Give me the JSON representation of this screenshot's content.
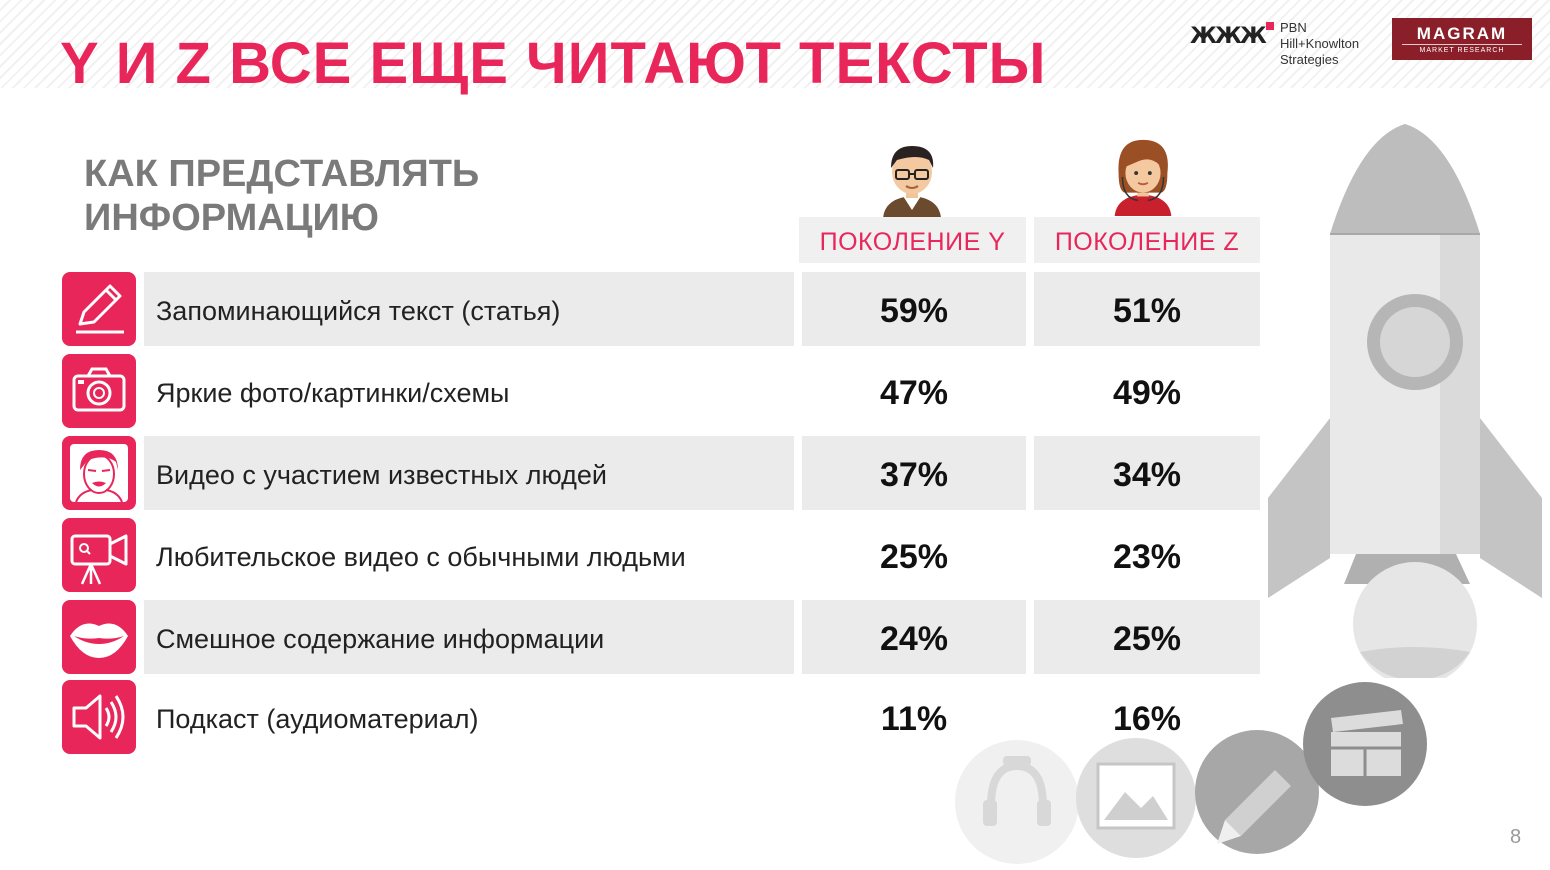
{
  "header": {
    "title": "Y И Z ВСЕ ЕЩЕ ЧИТАЮТ ТЕКСТЫ",
    "subtitle_line1": "КАК ПРЕДСТАВЛЯТЬ",
    "subtitle_line2": "ИНФОРМАЦИЮ"
  },
  "logos": {
    "pbn_marks": "ЖЖЖ",
    "pbn_line1": "PBN",
    "pbn_line2": "Hill+Knowlton",
    "pbn_line3": "Strategies",
    "magram_main": "MAGRAM",
    "magram_sub": "MARKET RESEARCH"
  },
  "table": {
    "col_y": "ПОКОЛЕНИЕ Y",
    "col_z": "ПОКОЛЕНИЕ Z",
    "rows": [
      {
        "label": "Запоминающийся текст (статья)",
        "y": "59%",
        "z": "51%",
        "icon": "pencil-icon"
      },
      {
        "label": "Яркие фото/картинки/схемы",
        "y": "47%",
        "z": "49%",
        "icon": "camera-icon"
      },
      {
        "label": "Видео с участием известных людей",
        "y": "37%",
        "z": "34%",
        "icon": "celebrity-face-icon"
      },
      {
        "label": "Любительское видео с обычными людьми",
        "y": "25%",
        "z": "23%",
        "icon": "video-camera-icon"
      },
      {
        "label": "Смешное содержание информации",
        "y": "24%",
        "z": "25%",
        "icon": "lips-icon"
      },
      {
        "label": "Подкаст (аудиоматериал)",
        "y": "11%",
        "z": "16%",
        "icon": "speaker-icon"
      }
    ]
  },
  "colors": {
    "accent": "#e8265a",
    "row_shade": "#ebebeb",
    "subtitle": "#7a7a7a"
  },
  "footer": {
    "page_number": "8"
  }
}
